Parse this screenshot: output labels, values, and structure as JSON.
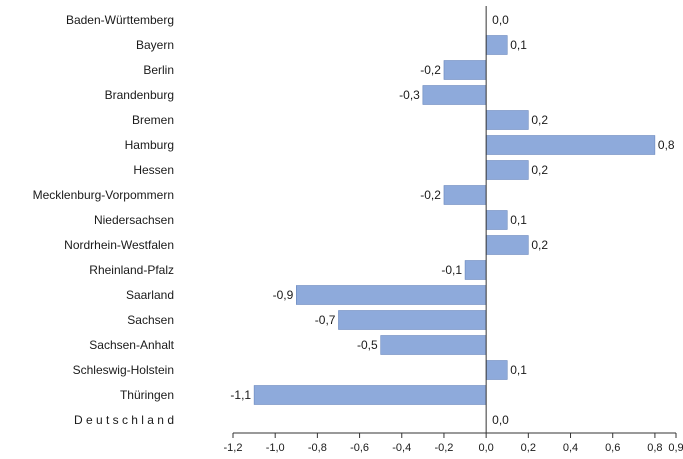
{
  "chart_data": {
    "type": "bar",
    "orientation": "horizontal",
    "title": "",
    "xlabel": "",
    "ylabel": "",
    "categories": [
      "Baden-Württemberg",
      "Bayern",
      "Berlin",
      "Brandenburg",
      "Bremen",
      "Hamburg",
      "Hessen",
      "Mecklenburg-Vorpommern",
      "Niedersachsen",
      "Nordrhein-Westfalen",
      "Rheinland-Pfalz",
      "Saarland",
      "Sachsen",
      "Sachsen-Anhalt",
      "Schleswig-Holstein",
      "Thüringen",
      "D e u t s c h l a n d"
    ],
    "values": [
      0.0,
      0.1,
      -0.2,
      -0.3,
      0.2,
      0.8,
      0.2,
      -0.2,
      0.1,
      0.2,
      -0.1,
      -0.9,
      -0.7,
      -0.5,
      0.1,
      -1.1,
      0.0
    ],
    "value_labels": [
      "0,0",
      "0,1",
      "-0,2",
      "-0,3",
      "0,2",
      "0,8",
      "0,2",
      "-0,2",
      "0,1",
      "0,2",
      "-0,1",
      "-0,9",
      "-0,7",
      "-0,5",
      "0,1",
      "-1,1",
      "0,0"
    ],
    "xlim": [
      -1.2,
      0.9
    ],
    "x_ticks": [
      -1.2,
      -1.0,
      -0.8,
      -0.6,
      -0.4,
      -0.2,
      0.0,
      0.2,
      0.4,
      0.6,
      0.8,
      0.9
    ],
    "x_tick_labels": [
      "-1,2",
      "-1,0",
      "-0,8",
      "-0,6",
      "-0,4",
      "-0,2",
      "0,0",
      "0,2",
      "0,4",
      "0,6",
      "0,8",
      "0,9"
    ],
    "bar_color": "#8eaadb",
    "grid": false,
    "legend": "none"
  }
}
